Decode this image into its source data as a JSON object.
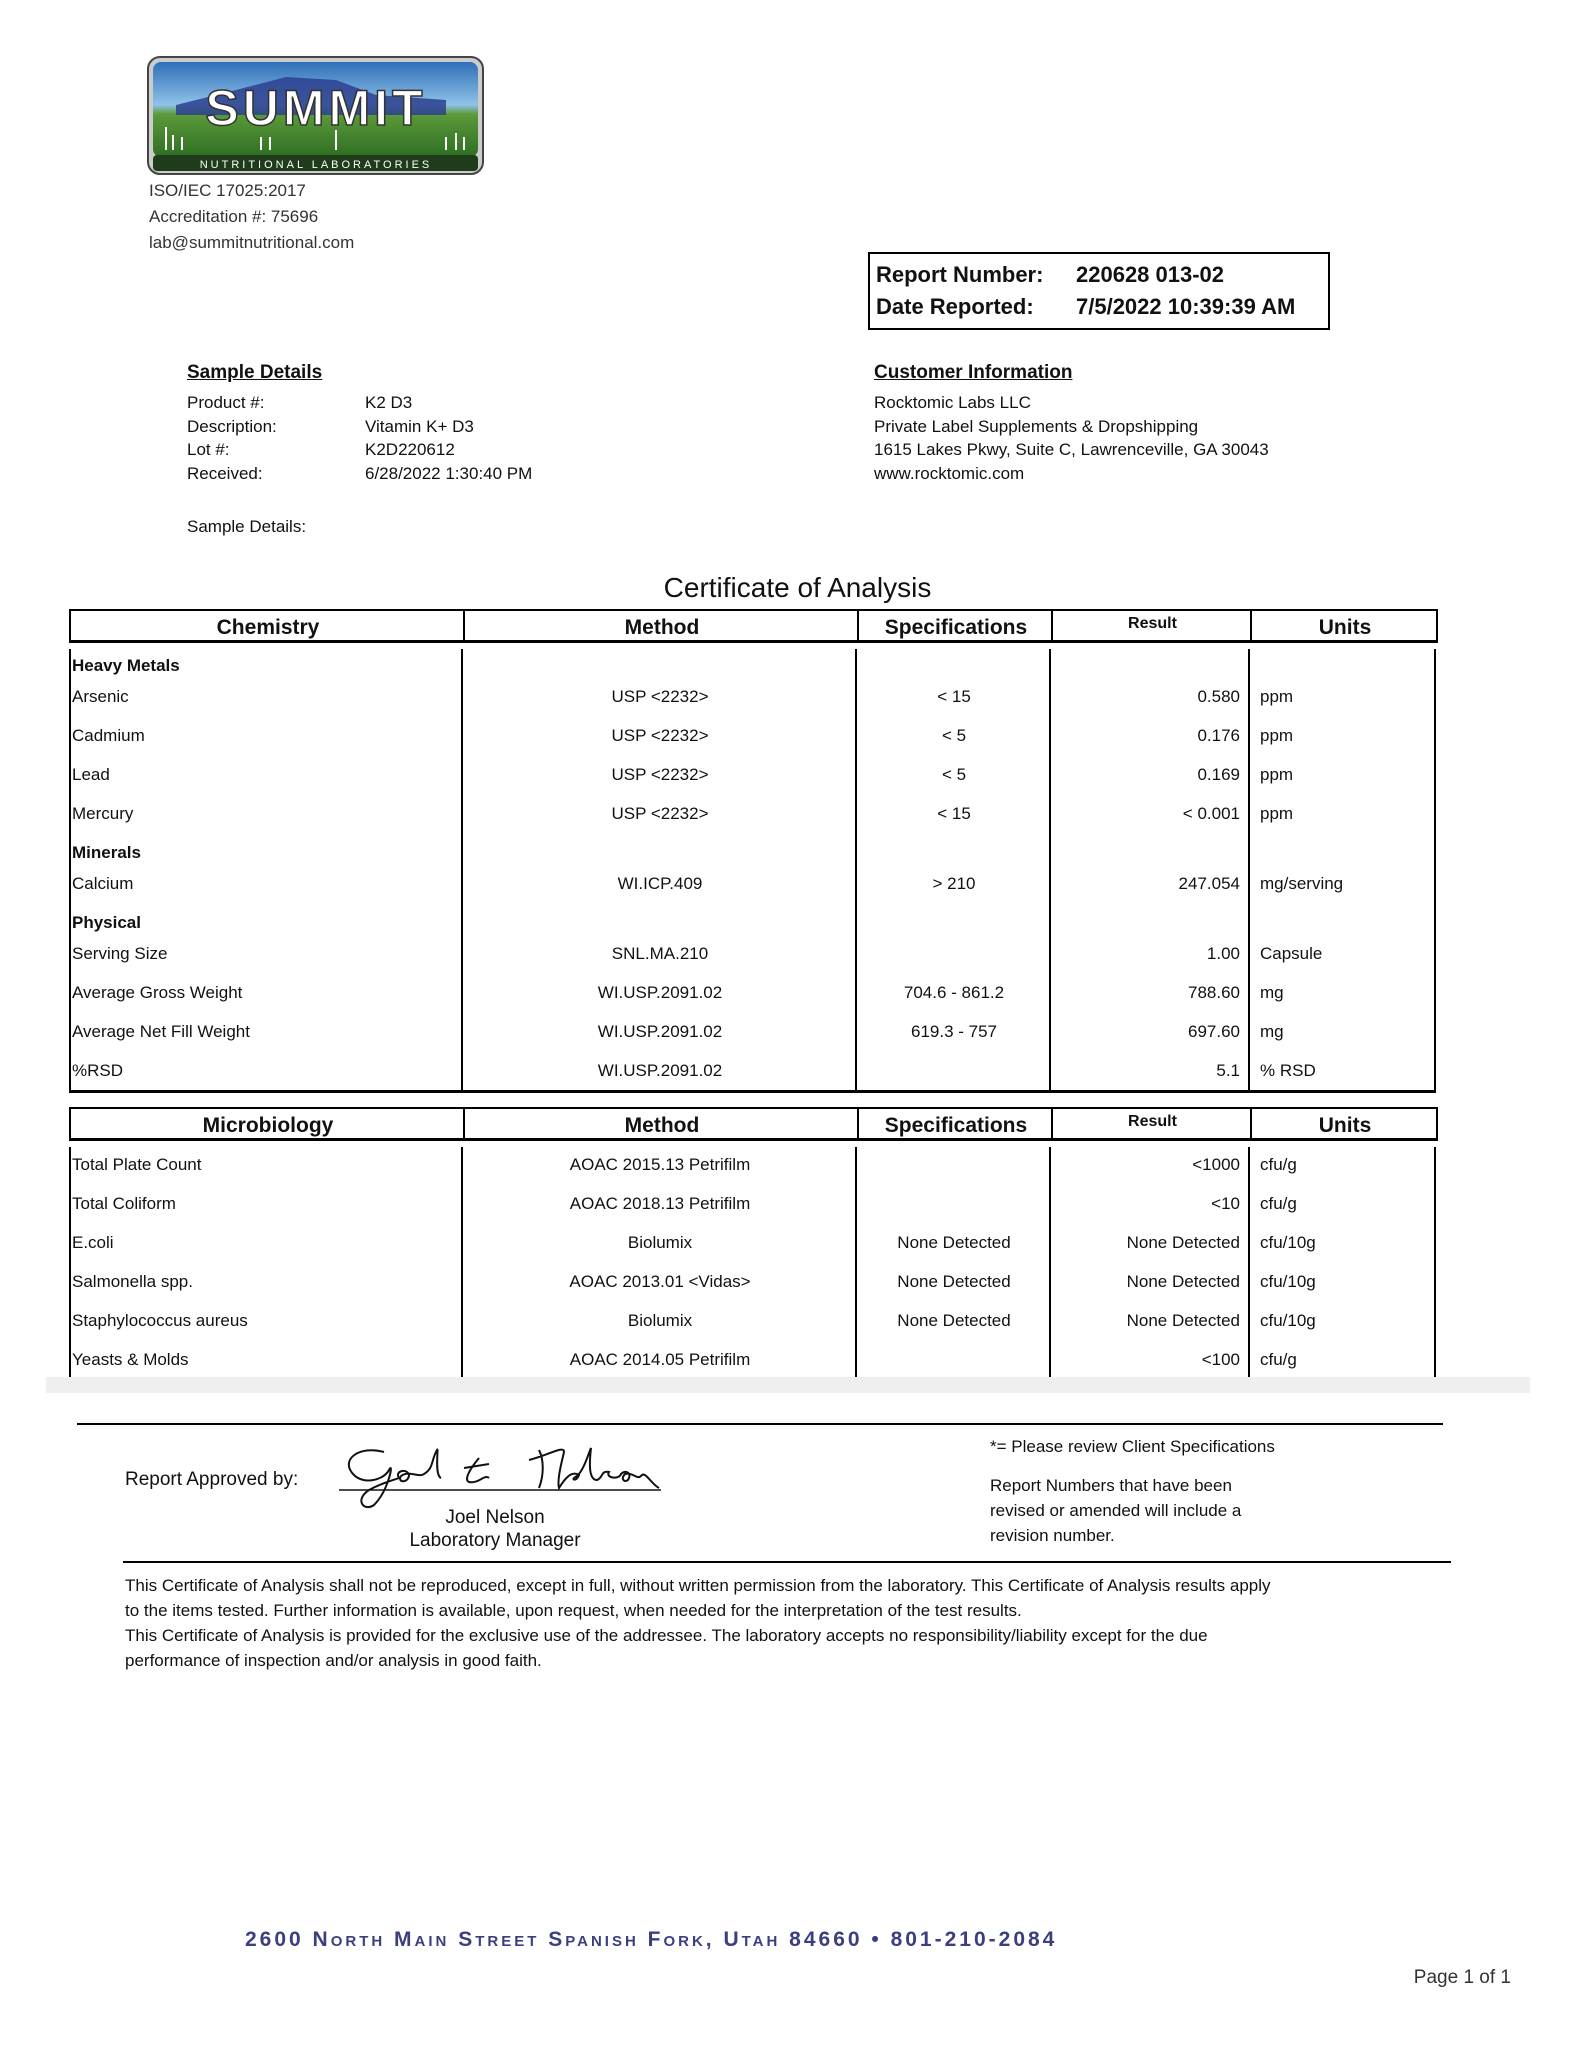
{
  "lab": {
    "logo_text": "SUMMIT",
    "logo_subtext": "NUTRITIONAL LABORATORIES",
    "iso": "ISO/IEC 17025:2017",
    "accreditation": "Accreditation #: 75696",
    "email": "lab@summitnutritional.com"
  },
  "report": {
    "number_label": "Report Number:",
    "number": "220628 013-02",
    "date_label": "Date Reported:",
    "date": "7/5/2022 10:39:39 AM"
  },
  "sample": {
    "heading": "Sample Details",
    "fields": [
      {
        "label": "Product #:",
        "value": "K2 D3"
      },
      {
        "label": "Description:",
        "value": "Vitamin K+ D3"
      },
      {
        "label": "Lot #:",
        "value": "K2D220612"
      },
      {
        "label": "Received:",
        "value": "6/28/2022 1:30:40 PM"
      }
    ],
    "details_label": "Sample Details:"
  },
  "customer": {
    "heading": "Customer Information",
    "lines": [
      "Rocktomic Labs LLC",
      "Private Label Supplements & Dropshipping",
      "1615 Lakes Pkwy, Suite C, Lawrenceville, GA 30043",
      "www.rocktomic.com"
    ]
  },
  "title": "Certificate of Analysis",
  "chemistry": {
    "headers": [
      "Chemistry",
      "Method",
      "Specifications",
      "Result",
      "Units"
    ],
    "rows": [
      {
        "group": "Heavy Metals"
      },
      {
        "name": "Arsenic",
        "method": "USP <2232>",
        "spec": "< 15",
        "result": "0.580",
        "units": "ppm"
      },
      {
        "name": "Cadmium",
        "method": "USP <2232>",
        "spec": "< 5",
        "result": "0.176",
        "units": "ppm"
      },
      {
        "name": "Lead",
        "method": "USP <2232>",
        "spec": "< 5",
        "result": "0.169",
        "units": "ppm"
      },
      {
        "name": "Mercury",
        "method": "USP <2232>",
        "spec": "< 15",
        "result": "< 0.001",
        "units": "ppm"
      },
      {
        "group": "Minerals"
      },
      {
        "name": "Calcium",
        "method": "WI.ICP.409",
        "spec": "> 210",
        "result": "247.054",
        "units": "mg/serving"
      },
      {
        "group": "Physical"
      },
      {
        "name": "Serving Size",
        "method": "SNL.MA.210",
        "spec": "",
        "result": "1.00",
        "units": "Capsule"
      },
      {
        "name": "Average Gross Weight",
        "method": "WI.USP.2091.02",
        "spec": "704.6 - 861.2",
        "result": "788.60",
        "units": "mg"
      },
      {
        "name": "Average Net Fill Weight",
        "method": "WI.USP.2091.02",
        "spec": "619.3 - 757",
        "result": "697.60",
        "units": "mg"
      },
      {
        "name": "%RSD",
        "method": "WI.USP.2091.02",
        "spec": "",
        "result": "5.1",
        "units": "% RSD"
      }
    ]
  },
  "microbiology": {
    "headers": [
      "Microbiology",
      "Method",
      "Specifications",
      "Result",
      "Units"
    ],
    "rows": [
      {
        "name": "Total Plate Count",
        "method": "AOAC 2015.13 Petrifilm",
        "spec": "",
        "result": "<1000",
        "units": "cfu/g"
      },
      {
        "name": "Total Coliform",
        "method": "AOAC 2018.13 Petrifilm",
        "spec": "",
        "result": "<10",
        "units": "cfu/g"
      },
      {
        "name": "E.coli",
        "method": "Biolumix",
        "spec": "None Detected",
        "result": "None Detected",
        "units": "cfu/10g"
      },
      {
        "name": "Salmonella spp.",
        "method": "AOAC 2013.01 <Vidas>",
        "spec": "None Detected",
        "result": "None Detected",
        "units": "cfu/10g"
      },
      {
        "name": "Staphylococcus aureus",
        "method": "Biolumix",
        "spec": "None Detected",
        "result": "None Detected",
        "units": "cfu/10g"
      },
      {
        "name": "Yeasts & Molds",
        "method": "AOAC 2014.05 Petrifilm",
        "spec": "",
        "result": "<100",
        "units": "cfu/g"
      }
    ]
  },
  "approval": {
    "label": "Report Approved by:",
    "signature": "Joel L Nelson",
    "name": "Joel Nelson",
    "title": "Laboratory Manager"
  },
  "notes": {
    "client_spec": "*= Please review Client Specifications",
    "revision": [
      "Report Numbers that have been",
      "revised or amended will include a",
      "revision number."
    ]
  },
  "disclaimer": [
    "This Certificate of Analysis shall not be reproduced, except in full, without written permission from the laboratory. This Certificate of Analysis results apply",
    "to the items tested. Further information is available, upon request, when needed for the interpretation of the test results.",
    "This Certificate of Analysis is provided for the exclusive use of the addressee. The laboratory accepts no responsibility/liability except for the due",
    "performance of inspection and/or analysis in good faith."
  ],
  "footer": {
    "address": "2600 North Main Street  Spanish Fork, Utah  84660 • 801-210-2084",
    "page": "Page 1 of 1"
  },
  "colors": {
    "logo_sky": "#3d7fc4",
    "logo_grass": "#3f8a2c",
    "footer_text": "#3b3f80"
  }
}
